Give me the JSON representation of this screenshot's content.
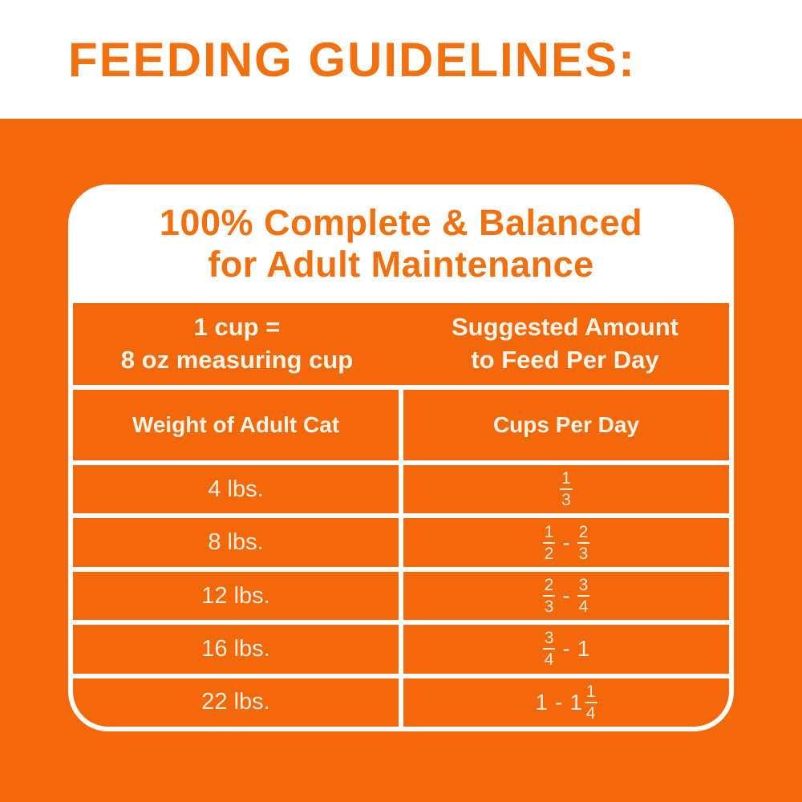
{
  "page_title": "FEEDING GUIDELINES:",
  "card": {
    "title": {
      "line1": "100% Complete & Balanced",
      "line2": "for Adult Maintenance"
    },
    "header_band": {
      "left": {
        "line1": "1 cup =",
        "line2": "8 oz measuring cup"
      },
      "right": {
        "line1": "Suggested Amount",
        "line2": "to Feed Per Day"
      }
    },
    "column_headers": {
      "weight": "Weight of Adult Cat",
      "cups": "Cups Per Day"
    },
    "rows": [
      {
        "weight": "4 lbs.",
        "cups": [
          {
            "type": "frac",
            "num": "1",
            "den": "3"
          }
        ]
      },
      {
        "weight": "8 lbs.",
        "cups": [
          {
            "type": "frac",
            "num": "1",
            "den": "2"
          },
          {
            "type": "dash",
            "value": "-"
          },
          {
            "type": "frac",
            "num": "2",
            "den": "3"
          }
        ]
      },
      {
        "weight": "12 lbs.",
        "cups": [
          {
            "type": "frac",
            "num": "2",
            "den": "3"
          },
          {
            "type": "dash",
            "value": "-"
          },
          {
            "type": "frac",
            "num": "3",
            "den": "4"
          }
        ]
      },
      {
        "weight": "16 lbs.",
        "cups": [
          {
            "type": "frac",
            "num": "3",
            "den": "4"
          },
          {
            "type": "dash",
            "value": "-"
          },
          {
            "type": "whole",
            "value": "1"
          }
        ]
      },
      {
        "weight": "22 lbs.",
        "cups": [
          {
            "type": "whole",
            "value": "1"
          },
          {
            "type": "dash",
            "value": "-"
          },
          {
            "type": "mixed",
            "whole": "1",
            "num": "1",
            "den": "4"
          }
        ]
      }
    ]
  },
  "colors": {
    "orange_bg": "#F2680B",
    "orange_text": "#F1700F",
    "band_text": "#FCF4E7",
    "cell_text": "#F9EEDC",
    "card_white": "#FFFFFF"
  }
}
